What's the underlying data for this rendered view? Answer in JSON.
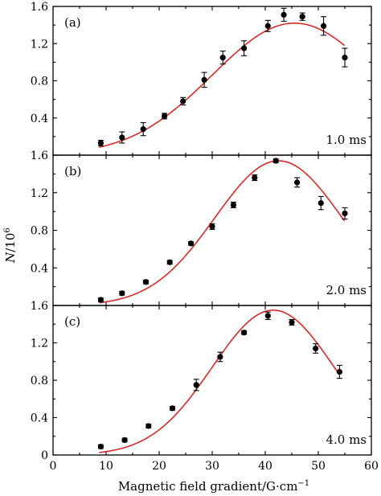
{
  "chart_data": {
    "type": "scatter",
    "xlabel": "Magnetic field gradient/G·cm",
    "xlabel_sup": "−1",
    "ylabel": "N",
    "ylabel_suffix": "/10",
    "ylabel_sup": "6",
    "xlim": [
      0,
      60
    ],
    "xticks": [
      0,
      10,
      20,
      30,
      40,
      50,
      60
    ],
    "ylim": [
      0.0,
      1.6
    ],
    "yticks": [
      0.0,
      0.4,
      0.8,
      1.2,
      1.6
    ],
    "ytick_labels": [
      "0",
      "0.4",
      "0.8",
      "1.2",
      "1.6"
    ],
    "grid": false,
    "panels": [
      {
        "label": "(a)",
        "time": "1.0 ms",
        "x": [
          9,
          13,
          17,
          21,
          24.5,
          28.5,
          32,
          36,
          40.5,
          43.5,
          47,
          51,
          55
        ],
        "y": [
          0.13,
          0.19,
          0.28,
          0.42,
          0.58,
          0.81,
          1.05,
          1.15,
          1.39,
          1.51,
          1.49,
          1.39,
          1.05
        ],
        "err": [
          0.03,
          0.06,
          0.07,
          0.03,
          0.04,
          0.08,
          0.07,
          0.08,
          0.06,
          0.07,
          0.04,
          0.1,
          0.1
        ],
        "fit": {
          "peak_x": 45.5,
          "peak_y": 1.42,
          "width": 15.5,
          "base": 0.0
        }
      },
      {
        "label": "(b)",
        "time": "2.0 ms",
        "x": [
          9,
          13,
          17.5,
          22,
          26,
          30,
          34,
          38,
          42,
          46,
          50.5,
          55
        ],
        "y": [
          0.06,
          0.13,
          0.25,
          0.46,
          0.66,
          0.84,
          1.07,
          1.36,
          1.54,
          1.31,
          1.09,
          0.98
        ],
        "err": [
          0.02,
          0.02,
          0.02,
          0.02,
          0.02,
          0.03,
          0.03,
          0.03,
          0.02,
          0.05,
          0.07,
          0.06
        ],
        "fit": {
          "peak_x": 42.5,
          "peak_y": 1.54,
          "width": 12.0,
          "base": 0.0
        }
      },
      {
        "label": "(c)",
        "time": "4.0 ms",
        "x": [
          9,
          13.5,
          18,
          22.5,
          27,
          31.5,
          36,
          40.5,
          45,
          49.5,
          54
        ],
        "y": [
          0.09,
          0.16,
          0.31,
          0.5,
          0.75,
          1.05,
          1.31,
          1.49,
          1.42,
          1.14,
          0.89
        ],
        "err": [
          0.02,
          0.02,
          0.02,
          0.02,
          0.06,
          0.05,
          0.02,
          0.04,
          0.03,
          0.05,
          0.07
        ],
        "fit": {
          "peak_x": 41.5,
          "peak_y": 1.55,
          "width": 11.5,
          "base": 0.0
        }
      }
    ],
    "series_color": "#d62a2a",
    "marker_color": "#000000"
  }
}
